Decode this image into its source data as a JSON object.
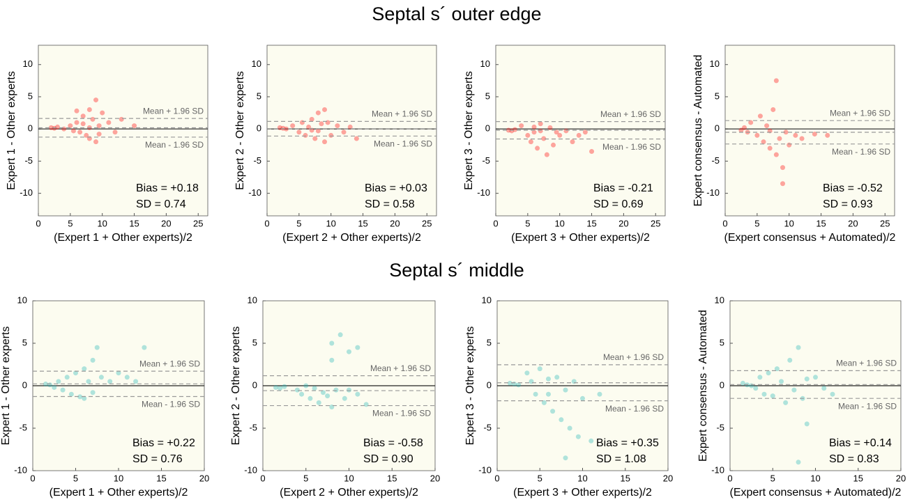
{
  "row_titles": [
    "Septal s´ outer edge",
    "Septal s´ middle"
  ],
  "chart_data": [
    {
      "type": "scatter",
      "xlabel": "(Expert 1 + Other experts)/2",
      "ylabel": "Expert 1 - Other experts",
      "xlim": [
        0,
        26.5
      ],
      "ylim": [
        -13.5,
        13
      ],
      "xticks": [
        0,
        5,
        10,
        15,
        20,
        25
      ],
      "yticks": [
        -10,
        -5,
        0,
        5,
        10
      ],
      "series": [
        {
          "color": "#ff0000",
          "x": [
            2,
            2.5,
            3,
            4,
            5,
            5.5,
            6,
            6.5,
            7,
            7,
            7.5,
            8,
            8,
            8.5,
            9,
            9,
            9.5,
            10,
            11,
            12,
            13,
            15,
            6,
            8,
            9.5
          ],
          "y": [
            0.2,
            0.1,
            0.3,
            0,
            0.5,
            -0.3,
            1,
            -0.5,
            0.8,
            2,
            -1,
            3,
            -1.5,
            1.5,
            4.5,
            -2,
            0.5,
            2.5,
            1,
            -0.5,
            1.5,
            0.5,
            2.8,
            0.2,
            -0.8
          ]
        }
      ],
      "bias": 0.18,
      "upper_loa": 1.63,
      "lower_loa": -1.27,
      "upper_label": "Mean + 1.96 SD",
      "lower_label": "Mean - 1.96 SD",
      "bias_text": "Bias = +0.18",
      "sd_text": "SD = 0.74"
    },
    {
      "type": "scatter",
      "xlabel": "(Expert 2 + Other experts)/2",
      "ylabel": "Expert 2 - Other experts",
      "xlim": [
        0,
        26.5
      ],
      "ylim": [
        -13.5,
        13
      ],
      "xticks": [
        0,
        5,
        10,
        15,
        20,
        25
      ],
      "yticks": [
        -10,
        -5,
        0,
        5,
        10
      ],
      "series": [
        {
          "color": "#ff0000",
          "x": [
            2,
            2.5,
            3,
            4,
            5,
            5.5,
            6,
            6.5,
            7,
            7.5,
            8,
            8,
            8.5,
            9,
            9.5,
            10,
            11,
            12,
            13,
            14,
            7,
            9
          ],
          "y": [
            0.2,
            0.1,
            0,
            0.5,
            -0.5,
            1,
            -1,
            0.3,
            1.5,
            -1.5,
            2.5,
            -0.3,
            0.8,
            -2,
            1,
            -1,
            0.5,
            -0.5,
            0.3,
            -1.5,
            -0.2,
            3
          ]
        }
      ],
      "bias": 0.03,
      "upper_loa": 1.17,
      "lower_loa": -1.11,
      "upper_label": "Mean + 1.96 SD",
      "lower_label": "Mean - 1.96 SD",
      "bias_text": "Bias = +0.03",
      "sd_text": "SD = 0.58"
    },
    {
      "type": "scatter",
      "xlabel": "(Expert 3 + Other experts)/2",
      "ylabel": "Expert 3 - Other experts",
      "xlim": [
        0,
        26.5
      ],
      "ylim": [
        -13.5,
        13
      ],
      "xticks": [
        0,
        5,
        10,
        15,
        20,
        25
      ],
      "yticks": [
        -10,
        -5,
        0,
        5,
        10
      ],
      "series": [
        {
          "color": "#ff0000",
          "x": [
            2,
            2.5,
            3,
            4,
            5,
            5.5,
            6,
            6.5,
            7,
            7.5,
            8,
            8.5,
            9,
            9.5,
            10,
            11,
            12,
            13,
            14,
            15,
            7,
            6
          ],
          "y": [
            -0.2,
            -0.3,
            -0.1,
            0.5,
            -1,
            -2,
            0.3,
            -3,
            0.8,
            -1.5,
            -4,
            0.2,
            -2.5,
            -0.5,
            -1,
            -0.3,
            -2,
            -1,
            -0.5,
            -3.5,
            -0.3,
            -0.5
          ]
        }
      ],
      "bias": -0.21,
      "upper_loa": 1.14,
      "lower_loa": -1.56,
      "upper_label": "Mean + 1.96 SD",
      "lower_label": "Mean - 1.96 SD",
      "bias_text": "Bias = -0.21",
      "sd_text": "SD = 0.69"
    },
    {
      "type": "scatter",
      "xlabel": "(Expert consensus + Automated)/2",
      "ylabel": "Expert consensus - Automated",
      "xlim": [
        0,
        26.5
      ],
      "ylim": [
        -13.5,
        13
      ],
      "xticks": [
        0,
        5,
        10,
        15,
        20,
        25
      ],
      "yticks": [
        -10,
        -5,
        0,
        5,
        10
      ],
      "series": [
        {
          "color": "#ff0000",
          "x": [
            2.5,
            3,
            3.5,
            4,
            5,
            5.5,
            6,
            6.5,
            7,
            7.5,
            8,
            8,
            8.5,
            9,
            9.5,
            10,
            11,
            12,
            14,
            16,
            9,
            7
          ],
          "y": [
            -0.2,
            0.2,
            -0.5,
            1,
            -1,
            2,
            -2,
            0.5,
            -3,
            3,
            -4,
            7.5,
            -1.5,
            -6,
            -0.5,
            -2.5,
            -1,
            -1.5,
            -0.8,
            -1,
            -8.5,
            -0.3
          ]
        }
      ],
      "bias": -0.52,
      "upper_loa": 1.3,
      "lower_loa": -2.34,
      "upper_label": "Mean + 1.96 SD",
      "lower_label": "Mean - 1.96 SD",
      "bias_text": "Bias = -0.52",
      "sd_text": "SD = 0.93"
    },
    {
      "type": "scatter",
      "xlabel": "(Expert 1 + Other experts)/2",
      "ylabel": "Expert 1 - Other experts",
      "xlim": [
        0,
        20
      ],
      "ylim": [
        -10,
        10
      ],
      "xticks": [
        0,
        5,
        10,
        15,
        20
      ],
      "yticks": [
        -10,
        -5,
        0,
        5,
        10
      ],
      "series": [
        {
          "color": "#1fb5b5",
          "x": [
            1.5,
            2,
            2.5,
            3,
            3.5,
            4,
            4.5,
            5,
            5.5,
            6,
            6.5,
            7,
            7,
            7.5,
            8,
            9,
            10,
            11,
            12,
            13,
            6
          ],
          "y": [
            0.2,
            0.1,
            -0.2,
            0.5,
            -0.5,
            1,
            -1,
            1.5,
            -1.3,
            2,
            0.5,
            3,
            -0.8,
            4.5,
            1,
            0.5,
            1.5,
            1,
            0.5,
            4.5,
            -1.5
          ]
        }
      ],
      "bias": 0.22,
      "upper_loa": 1.71,
      "lower_loa": -1.27,
      "upper_label": "Mean + 1.96 SD",
      "lower_label": "Mean - 1.96 SD",
      "bias_text": "Bias = +0.22",
      "sd_text": "SD = 0.76"
    },
    {
      "type": "scatter",
      "xlabel": "(Expert 2 + Other experts)/2",
      "ylabel": "Expert 2 - Other experts",
      "xlim": [
        0,
        20
      ],
      "ylim": [
        -10,
        10
      ],
      "xticks": [
        0,
        5,
        10,
        15,
        20
      ],
      "yticks": [
        -10,
        -5,
        0,
        5,
        10
      ],
      "series": [
        {
          "color": "#1fb5b5",
          "x": [
            1.5,
            2,
            2.5,
            4,
            4.5,
            5,
            5.5,
            6,
            6.5,
            7,
            7.5,
            8,
            8,
            8.5,
            9,
            9.5,
            10,
            11,
            11,
            12,
            8,
            10
          ],
          "y": [
            -0.2,
            -0.3,
            -0.1,
            -0.5,
            -1,
            0,
            -1.5,
            -0.3,
            -2,
            -0.8,
            -1.2,
            -2.5,
            5,
            -0.5,
            6,
            -1.5,
            4,
            -1,
            4.5,
            -2.2,
            3,
            -0.5
          ]
        }
      ],
      "bias": -0.58,
      "upper_loa": 1.18,
      "lower_loa": -2.34,
      "upper_label": "Mean + 1.96 SD",
      "lower_label": "Mean - 1.96 SD",
      "bias_text": "Bias = -0.58",
      "sd_text": "SD = 0.90"
    },
    {
      "type": "scatter",
      "xlabel": "(Expert 3 + Other experts)/2",
      "ylabel": "Expert 3 - Other experts",
      "xlim": [
        0,
        20
      ],
      "ylim": [
        -10,
        10
      ],
      "xticks": [
        0,
        5,
        10,
        15,
        20
      ],
      "yticks": [
        -10,
        -5,
        0,
        5,
        10
      ],
      "series": [
        {
          "color": "#1fb5b5",
          "x": [
            1.5,
            2,
            2.5,
            3.5,
            4,
            4.5,
            5,
            5.5,
            6,
            6.5,
            7,
            7.5,
            8,
            8.5,
            9,
            9.5,
            10,
            11,
            12,
            8,
            6
          ],
          "y": [
            0.3,
            0.2,
            0.1,
            1.5,
            0.5,
            -1,
            2,
            -2,
            0.8,
            -3,
            1,
            -4,
            -0.5,
            -5,
            0.5,
            -6,
            -1.5,
            -6.5,
            -1,
            -8.5,
            -1
          ]
        }
      ],
      "bias": 0.35,
      "upper_loa": 2.47,
      "lower_loa": -1.77,
      "upper_label": "Mean + 1.96 SD",
      "lower_label": "Mean - 1.96 SD",
      "bias_text": "Bias = +0.35",
      "sd_text": "SD = 1.08"
    },
    {
      "type": "scatter",
      "xlabel": "(Expert consensus + Automated)/2",
      "ylabel": "Expert consensus - Automated",
      "xlim": [
        0,
        20
      ],
      "ylim": [
        -10,
        10
      ],
      "xticks": [
        0,
        5,
        10,
        15,
        20
      ],
      "yticks": [
        -10,
        -5,
        0,
        5,
        10
      ],
      "series": [
        {
          "color": "#1fb5b5",
          "x": [
            1.5,
            2,
            2.5,
            3,
            3.5,
            4,
            4.5,
            5,
            5.5,
            6,
            6.5,
            7,
            7.5,
            8,
            8.5,
            9,
            10,
            11,
            12,
            8,
            9
          ],
          "y": [
            0.3,
            0.1,
            0,
            -0.3,
            1,
            -1,
            1.5,
            -1.2,
            2,
            0.5,
            -2,
            3,
            -0.5,
            4.5,
            -1.5,
            0.8,
            1,
            -0.3,
            -1,
            -9,
            -4.5
          ]
        }
      ],
      "bias": 0.14,
      "upper_loa": 1.77,
      "lower_loa": -1.49,
      "upper_label": "Mean + 1.96 SD",
      "lower_label": "Mean - 1.96 SD",
      "bias_text": "Bias = +0.14",
      "sd_text": "SD = 0.83"
    }
  ]
}
